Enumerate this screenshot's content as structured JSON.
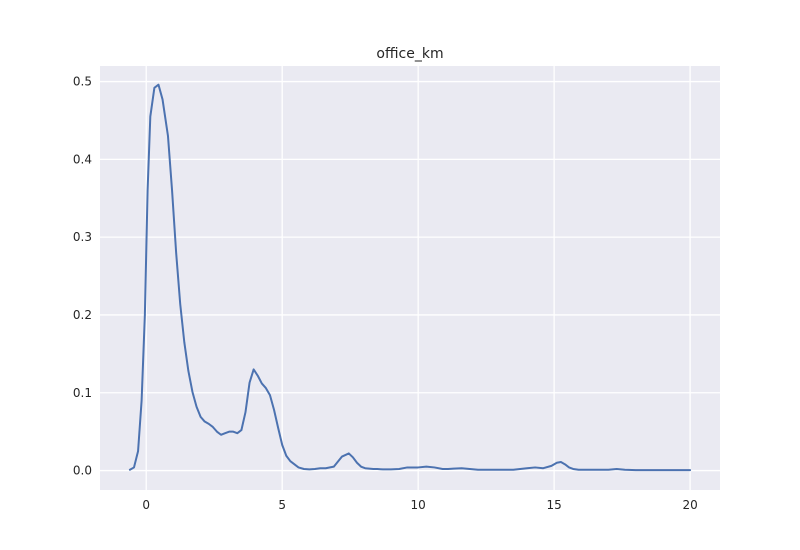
{
  "chart_data": {
    "type": "line",
    "title": "office_km",
    "xlabel": "",
    "ylabel": "",
    "xlim": [
      -1.7,
      21.1
    ],
    "ylim": [
      -0.025,
      0.52
    ],
    "xticks": [
      0,
      5,
      10,
      15,
      20
    ],
    "xtick_labels": [
      "0",
      "5",
      "10",
      "15",
      "20"
    ],
    "yticks": [
      0.0,
      0.1,
      0.2,
      0.3,
      0.4,
      0.5
    ],
    "ytick_labels": [
      "0.0",
      "0.1",
      "0.2",
      "0.3",
      "0.4",
      "0.5"
    ],
    "grid": true,
    "legend": false,
    "colors": {
      "line": "#4c72b0",
      "plot_bg": "#eaeaf2",
      "grid": "#ffffff",
      "text": "#262626"
    },
    "series": [
      {
        "color": "#4c72b0",
        "x": [
          -0.6,
          -0.45,
          -0.3,
          -0.17,
          -0.05,
          0.05,
          0.15,
          0.3,
          0.45,
          0.6,
          0.8,
          0.95,
          1.1,
          1.25,
          1.4,
          1.55,
          1.7,
          1.85,
          2.0,
          2.15,
          2.3,
          2.45,
          2.6,
          2.75,
          2.9,
          3.05,
          3.2,
          3.35,
          3.5,
          3.65,
          3.8,
          3.95,
          4.1,
          4.25,
          4.4,
          4.55,
          4.7,
          4.85,
          5.0,
          5.15,
          5.3,
          5.45,
          5.6,
          5.8,
          6.0,
          6.2,
          6.4,
          6.6,
          6.9,
          7.2,
          7.45,
          7.6,
          7.75,
          7.9,
          8.05,
          8.2,
          8.35,
          8.5,
          8.7,
          9.0,
          9.3,
          9.6,
          10.0,
          10.3,
          10.6,
          10.9,
          11.1,
          11.3,
          11.6,
          11.9,
          12.2,
          12.4,
          12.7,
          13.0,
          13.5,
          14.0,
          14.3,
          14.6,
          14.9,
          15.1,
          15.25,
          15.4,
          15.55,
          15.7,
          15.9,
          16.2,
          16.6,
          17.0,
          17.3,
          17.6,
          18.0,
          18.5,
          19.0,
          19.5,
          20.0
        ],
        "y": [
          0.001,
          0.004,
          0.025,
          0.09,
          0.2,
          0.36,
          0.455,
          0.492,
          0.496,
          0.477,
          0.43,
          0.36,
          0.28,
          0.214,
          0.165,
          0.128,
          0.101,
          0.082,
          0.069,
          0.063,
          0.06,
          0.056,
          0.05,
          0.046,
          0.048,
          0.05,
          0.05,
          0.048,
          0.052,
          0.075,
          0.113,
          0.13,
          0.122,
          0.112,
          0.106,
          0.097,
          0.078,
          0.055,
          0.033,
          0.019,
          0.012,
          0.008,
          0.004,
          0.002,
          0.0015,
          0.002,
          0.003,
          0.003,
          0.005,
          0.018,
          0.022,
          0.017,
          0.01,
          0.005,
          0.003,
          0.0025,
          0.002,
          0.002,
          0.0015,
          0.0015,
          0.002,
          0.004,
          0.004,
          0.005,
          0.004,
          0.002,
          0.002,
          0.0025,
          0.003,
          0.002,
          0.001,
          0.001,
          0.001,
          0.001,
          0.001,
          0.003,
          0.004,
          0.003,
          0.006,
          0.01,
          0.011,
          0.008,
          0.004,
          0.002,
          0.001,
          0.001,
          0.001,
          0.001,
          0.002,
          0.001,
          0.0005,
          0.0005,
          0.0005,
          0.0005,
          0.0005
        ]
      }
    ]
  }
}
